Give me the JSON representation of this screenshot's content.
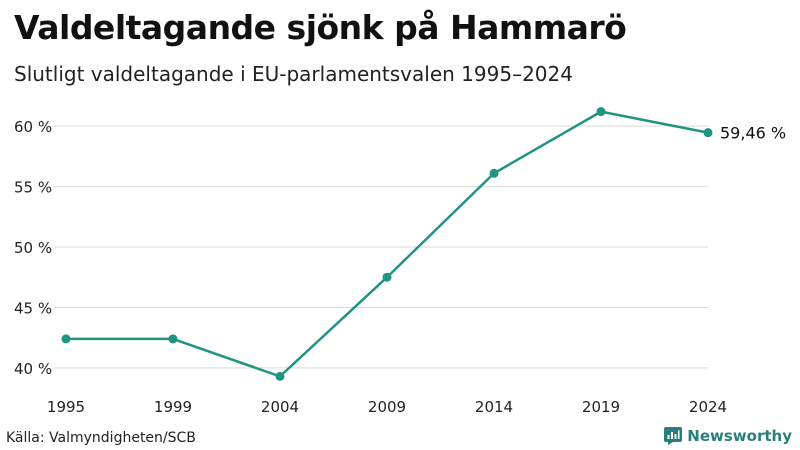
{
  "title": "Valdeltagande sjönk på Hammarö",
  "subtitle": "Slutligt valdeltagande i EU-parlamentsvalen 1995–2024",
  "source": "Källa: Valmyndigheten/SCB",
  "brand": {
    "name": "Newsworthy",
    "icon": "newsworthy-logo-icon"
  },
  "colors": {
    "line": "#1f9482",
    "grid": "#d9d9d9",
    "brand": "#2a7f7a"
  },
  "chart_data": {
    "type": "line",
    "x": [
      1995,
      1999,
      2004,
      2009,
      2014,
      2019,
      2024
    ],
    "x_tick_labels": [
      "1995",
      "1999",
      "2004",
      "2009",
      "2014",
      "2019",
      "2024"
    ],
    "series": [
      {
        "values": [
          42.4,
          42.4,
          39.3,
          47.5,
          56.1,
          61.2,
          59.46
        ]
      }
    ],
    "y_ticks": [
      40,
      45,
      50,
      55,
      60
    ],
    "y_tick_labels": [
      "40 %",
      "45 %",
      "50 %",
      "55 %",
      "60 %"
    ],
    "ylim": [
      39,
      61.5
    ],
    "end_label": "59,46 %",
    "grid": true
  }
}
